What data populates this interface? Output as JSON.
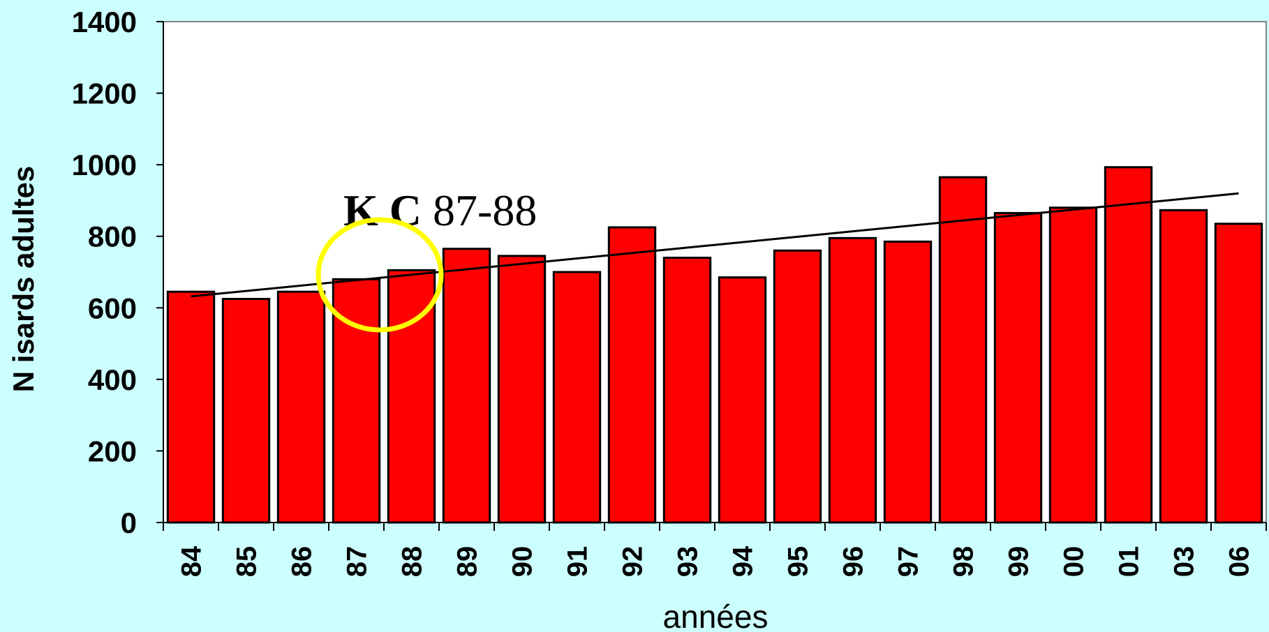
{
  "chart_data": {
    "type": "bar",
    "title": "",
    "xlabel": "années",
    "ylabel": "N isards adultes",
    "ylim": [
      0,
      1400
    ],
    "yticks": [
      0,
      200,
      400,
      600,
      800,
      1000,
      1200,
      1400
    ],
    "grid": false,
    "categories": [
      "84",
      "85",
      "86",
      "87",
      "88",
      "89",
      "90",
      "91",
      "92",
      "93",
      "94",
      "95",
      "96",
      "97",
      "98",
      "99",
      "00",
      "01",
      "03",
      "06"
    ],
    "series": [
      {
        "values": [
          645,
          625,
          645,
          680,
          705,
          765,
          745,
          700,
          825,
          740,
          685,
          760,
          795,
          785,
          965,
          865,
          880,
          993,
          873,
          835
        ]
      }
    ],
    "trendline": {
      "start": 632,
      "end": 920
    },
    "annotation": {
      "bold_text": "K C",
      "text": " 87-88"
    },
    "colors": {
      "bar": "#ff0000",
      "bar_edge": "#000000",
      "trendline": "#000000",
      "highlight_circle": "#ffff00",
      "plot_background": "#ffffff",
      "page_background": "#ccffff"
    }
  }
}
